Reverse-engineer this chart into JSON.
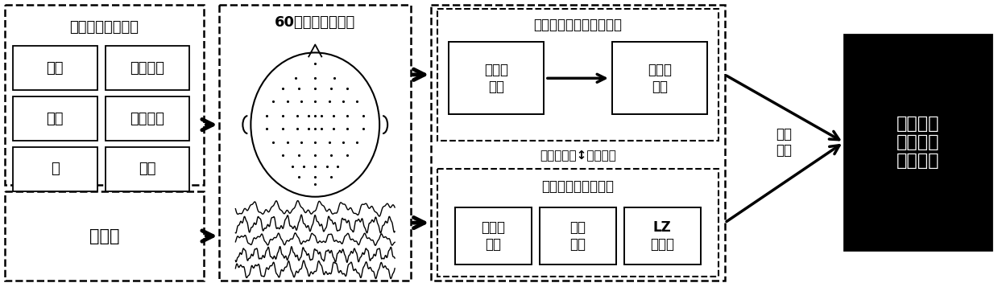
{
  "bg_color": "#ffffff",
  "figsize": [
    12.39,
    3.57
  ],
  "dpi": 100,
  "block1_title": "六种运动想象任务",
  "block1_cells": [
    [
      "左手",
      "左手右脚"
    ],
    [
      "右手",
      "右手左脚"
    ],
    [
      "脚",
      "双手"
    ]
  ],
  "block1_bottom": "静息态",
  "block2_title": "60导脑电信号采集",
  "block3_title": "运动想象特征提取与识别",
  "block3_top_cells": [
    "共空间\n模式",
    "支持向\n量机"
  ],
  "block3_middle": "相关性分析↕特征筛选",
  "block3_bottom_title": "静息态脑电特征提取",
  "block3_bottom_cells": [
    "归一化\n能量",
    "功率\n谱熵",
    "LZ\n复杂度"
  ],
  "block4_text": "运动想象\n响应能力\n预测模型",
  "block4_label": "回归\n分析"
}
